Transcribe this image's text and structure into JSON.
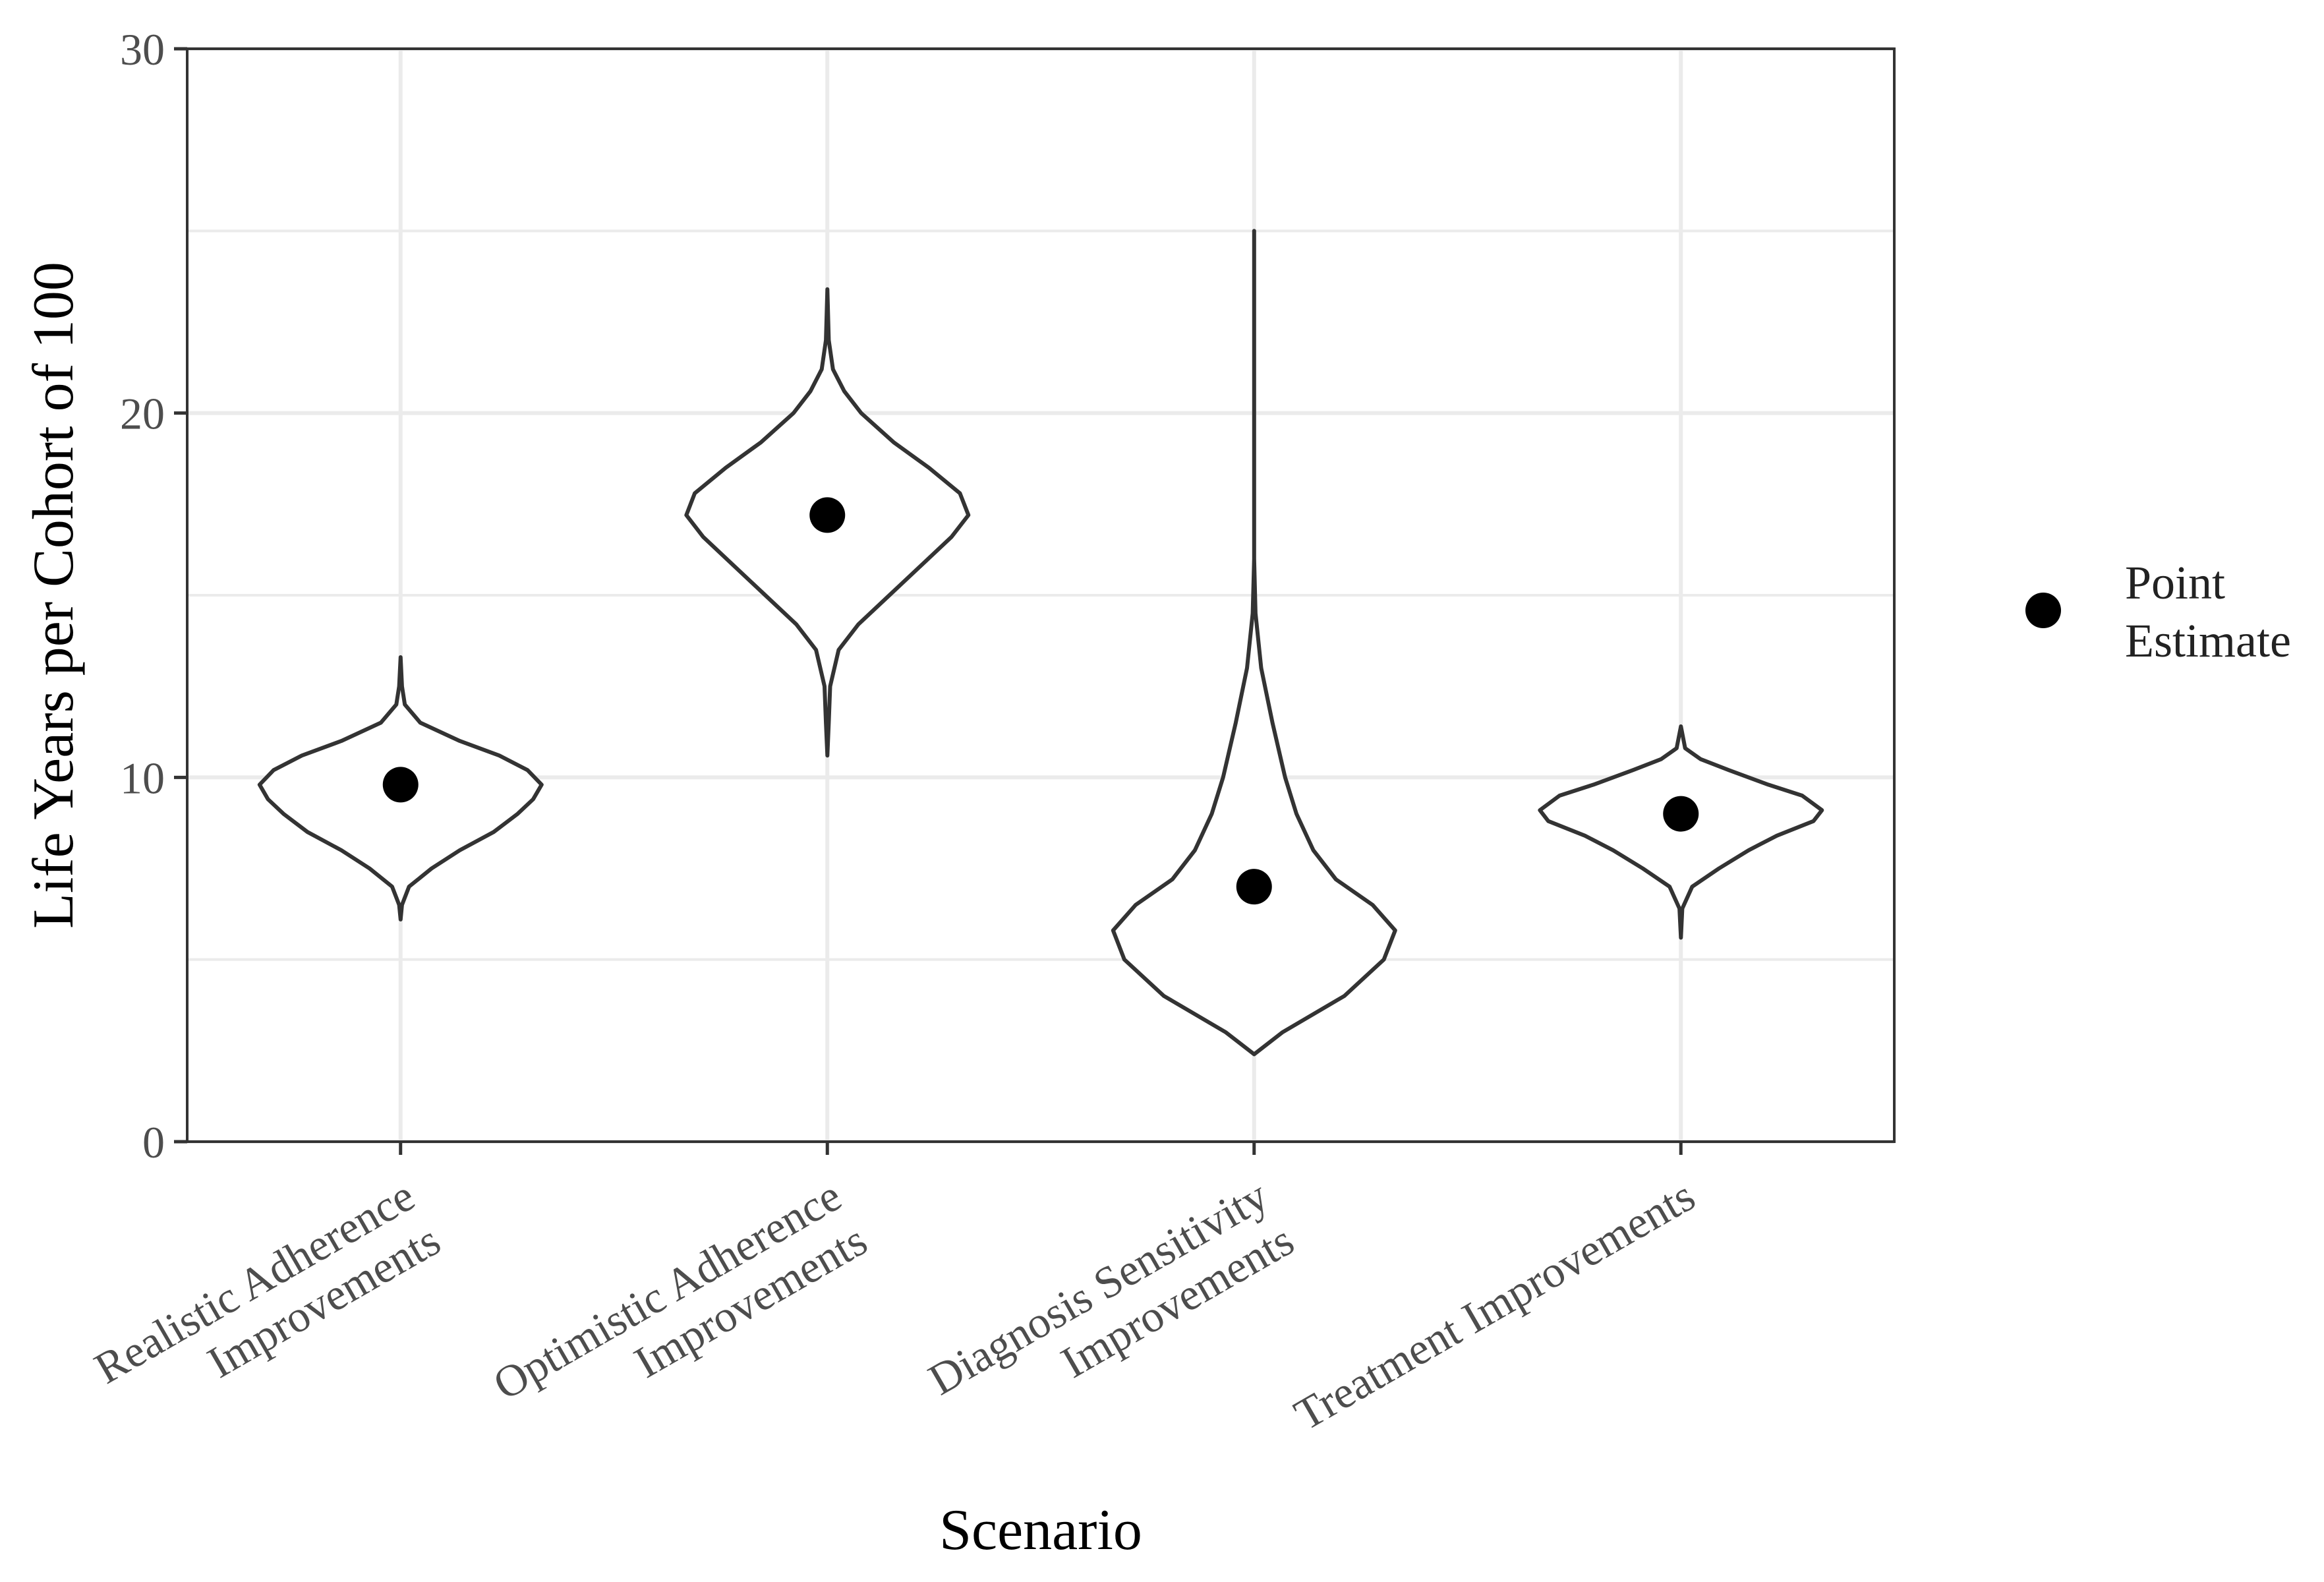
{
  "chart_data": {
    "type": "violin",
    "xlabel": "Scenario",
    "ylabel": "Life Years per Cohort of 100",
    "ylim": [
      0,
      30
    ],
    "yticks": [
      "0",
      "10",
      "20",
      "30"
    ],
    "grid": true,
    "legend": {
      "placement": "right",
      "label": "Point\nEstimate"
    },
    "categories": [
      "Realistic Adherence\nImprovements",
      "Optimistic Adherence\nImprovements",
      "Diagnosis Sensitivity\nImprovements",
      "Treatment Improvements"
    ],
    "point_estimates": [
      9.8,
      17.2,
      7.0,
      9.0
    ],
    "violins": [
      {
        "min": 6.1,
        "max": 13.3,
        "profile": [
          [
            6.1,
            0.0
          ],
          [
            6.5,
            0.01
          ],
          [
            7.0,
            0.06
          ],
          [
            7.5,
            0.22
          ],
          [
            8.0,
            0.42
          ],
          [
            8.5,
            0.66
          ],
          [
            9.0,
            0.83
          ],
          [
            9.4,
            0.94
          ],
          [
            9.8,
            1.0
          ],
          [
            10.2,
            0.9
          ],
          [
            10.6,
            0.7
          ],
          [
            11.0,
            0.42
          ],
          [
            11.5,
            0.14
          ],
          [
            12.0,
            0.03
          ],
          [
            12.5,
            0.01
          ],
          [
            13.3,
            0.0
          ]
        ]
      },
      {
        "min": 10.6,
        "max": 23.4,
        "profile": [
          [
            10.6,
            0.0
          ],
          [
            11.5,
            0.01
          ],
          [
            12.5,
            0.02
          ],
          [
            13.5,
            0.08
          ],
          [
            14.2,
            0.22
          ],
          [
            15.0,
            0.44
          ],
          [
            15.8,
            0.66
          ],
          [
            16.6,
            0.88
          ],
          [
            17.2,
            1.0
          ],
          [
            17.8,
            0.94
          ],
          [
            18.5,
            0.72
          ],
          [
            19.2,
            0.47
          ],
          [
            20.0,
            0.24
          ],
          [
            20.6,
            0.12
          ],
          [
            21.2,
            0.04
          ],
          [
            22.0,
            0.01
          ],
          [
            23.4,
            0.0
          ]
        ]
      },
      {
        "min": 2.4,
        "max": 25.0,
        "profile": [
          [
            2.4,
            0.0
          ],
          [
            3.0,
            0.2
          ],
          [
            4.0,
            0.64
          ],
          [
            5.0,
            0.92
          ],
          [
            5.8,
            1.0
          ],
          [
            6.5,
            0.84
          ],
          [
            7.2,
            0.58
          ],
          [
            8.0,
            0.42
          ],
          [
            9.0,
            0.3
          ],
          [
            10.0,
            0.22
          ],
          [
            11.5,
            0.13
          ],
          [
            13.0,
            0.05
          ],
          [
            14.5,
            0.01
          ],
          [
            16.0,
            0.0
          ],
          [
            25.0,
            0.0
          ]
        ]
      },
      {
        "min": 5.6,
        "max": 11.4,
        "profile": [
          [
            5.6,
            0.0
          ],
          [
            6.4,
            0.01
          ],
          [
            7.0,
            0.08
          ],
          [
            7.5,
            0.27
          ],
          [
            8.0,
            0.48
          ],
          [
            8.4,
            0.68
          ],
          [
            8.8,
            0.94
          ],
          [
            9.1,
            1.0
          ],
          [
            9.5,
            0.86
          ],
          [
            9.8,
            0.62
          ],
          [
            10.2,
            0.34
          ],
          [
            10.5,
            0.14
          ],
          [
            10.8,
            0.03
          ],
          [
            11.4,
            0.0
          ]
        ]
      }
    ]
  }
}
